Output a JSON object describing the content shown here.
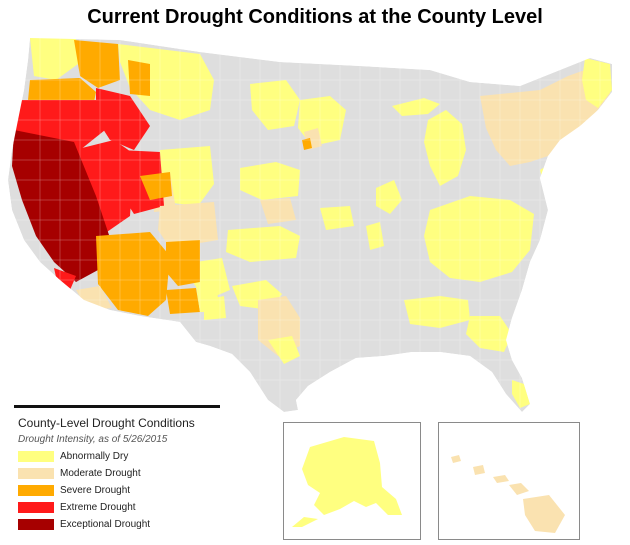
{
  "title": "Current Drought Conditions at the County Level",
  "legend": {
    "heading": "County-Level Drought Conditions",
    "subheading": "Drought Intensity, as of 5/26/2015",
    "items": [
      {
        "label": "Abnormally Dry",
        "color": "#ffff80"
      },
      {
        "label": "Moderate Drought",
        "color": "#fae2b0"
      },
      {
        "label": "Severe Drought",
        "color": "#ffaa00"
      },
      {
        "label": "Extreme Drought",
        "color": "#ff1a1a"
      },
      {
        "label": "Exceptional Drought",
        "color": "#a60000"
      }
    ]
  },
  "no_drought_color": "#dedede",
  "insets": [
    "Alaska",
    "Hawaii"
  ]
}
